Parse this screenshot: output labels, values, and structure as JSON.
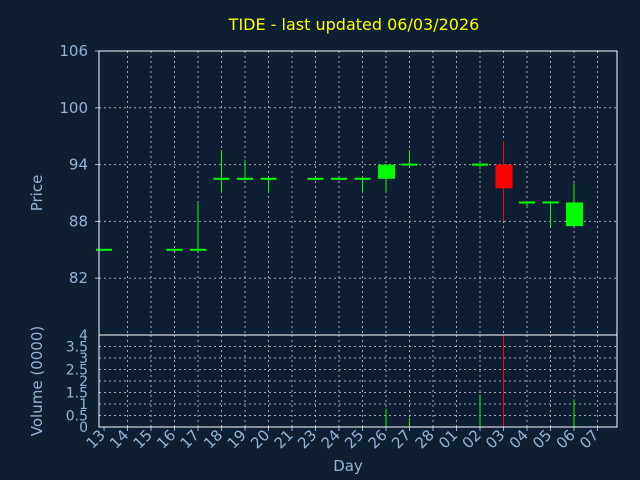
{
  "chart_data": {
    "type": "candlestick",
    "title": "TIDE - last updated 06/03/2026",
    "xlabel": "Day",
    "ylabel_price": "Price",
    "ylabel_volume": "Volume (0000)",
    "price_ylim": [
      76,
      106
    ],
    "price_ticks": [
      "106",
      "100",
      "94",
      "88",
      "82"
    ],
    "volume_ylim": [
      0,
      4
    ],
    "volume_ticks": [
      "4",
      "3.5",
      "3",
      "2.5",
      "2",
      "1.5",
      "1",
      "0.5",
      "0"
    ],
    "x_ticks": [
      "13",
      "14",
      "15",
      "16",
      "17",
      "18",
      "19",
      "20",
      "21",
      "23",
      "24",
      "25",
      "26",
      "27",
      "28",
      "01",
      "02",
      "03",
      "04",
      "05",
      "06",
      "07"
    ],
    "colors": {
      "up": "#00ff00",
      "down": "#ff0000",
      "title": "#ffff00",
      "axis": "#8fb3d9",
      "grid": "#c8c8c8",
      "background": "#0f1f33"
    },
    "candles": [
      {
        "day": "13",
        "open": 85,
        "high": 85,
        "low": 85,
        "close": 85,
        "volume": 0
      },
      {
        "day": "16",
        "open": 85,
        "high": 85,
        "low": 85,
        "close": 85,
        "volume": 0
      },
      {
        "day": "17",
        "open": 85,
        "high": 90,
        "low": 85,
        "close": 85,
        "volume": 0.1
      },
      {
        "day": "18",
        "open": 92.5,
        "high": 95.5,
        "low": 91,
        "close": 92.5,
        "volume": 0
      },
      {
        "day": "19",
        "open": 92.5,
        "high": 94.5,
        "low": 92.5,
        "close": 92.5,
        "volume": 0
      },
      {
        "day": "20",
        "open": 92.5,
        "high": 92.5,
        "low": 91,
        "close": 92.5,
        "volume": 0
      },
      {
        "day": "23",
        "open": 92.5,
        "high": 92.5,
        "low": 92.5,
        "close": 92.5,
        "volume": 0
      },
      {
        "day": "24",
        "open": 92.5,
        "high": 92.5,
        "low": 92.5,
        "close": 92.5,
        "volume": 0
      },
      {
        "day": "25",
        "open": 92.5,
        "high": 92.5,
        "low": 91,
        "close": 92.5,
        "volume": 0
      },
      {
        "day": "26",
        "open": 92.5,
        "high": 94,
        "low": 91,
        "close": 94,
        "volume": 0.8
      },
      {
        "day": "27",
        "open": 94,
        "high": 95.5,
        "low": 94,
        "close": 94,
        "volume": 0.4
      },
      {
        "day": "02",
        "open": 94,
        "high": 94,
        "low": 93.5,
        "close": 94,
        "volume": 1.4
      },
      {
        "day": "03",
        "open": 94,
        "high": 96.5,
        "low": 88,
        "close": 91.5,
        "volume": 4.0
      },
      {
        "day": "04",
        "open": 90,
        "high": 90,
        "low": 89.5,
        "close": 90,
        "volume": 0
      },
      {
        "day": "05",
        "open": 90,
        "high": 90,
        "low": 87.5,
        "close": 90,
        "volume": 0
      },
      {
        "day": "06",
        "open": 87.5,
        "high": 92,
        "low": 87.5,
        "close": 90,
        "volume": 1.2
      }
    ]
  }
}
